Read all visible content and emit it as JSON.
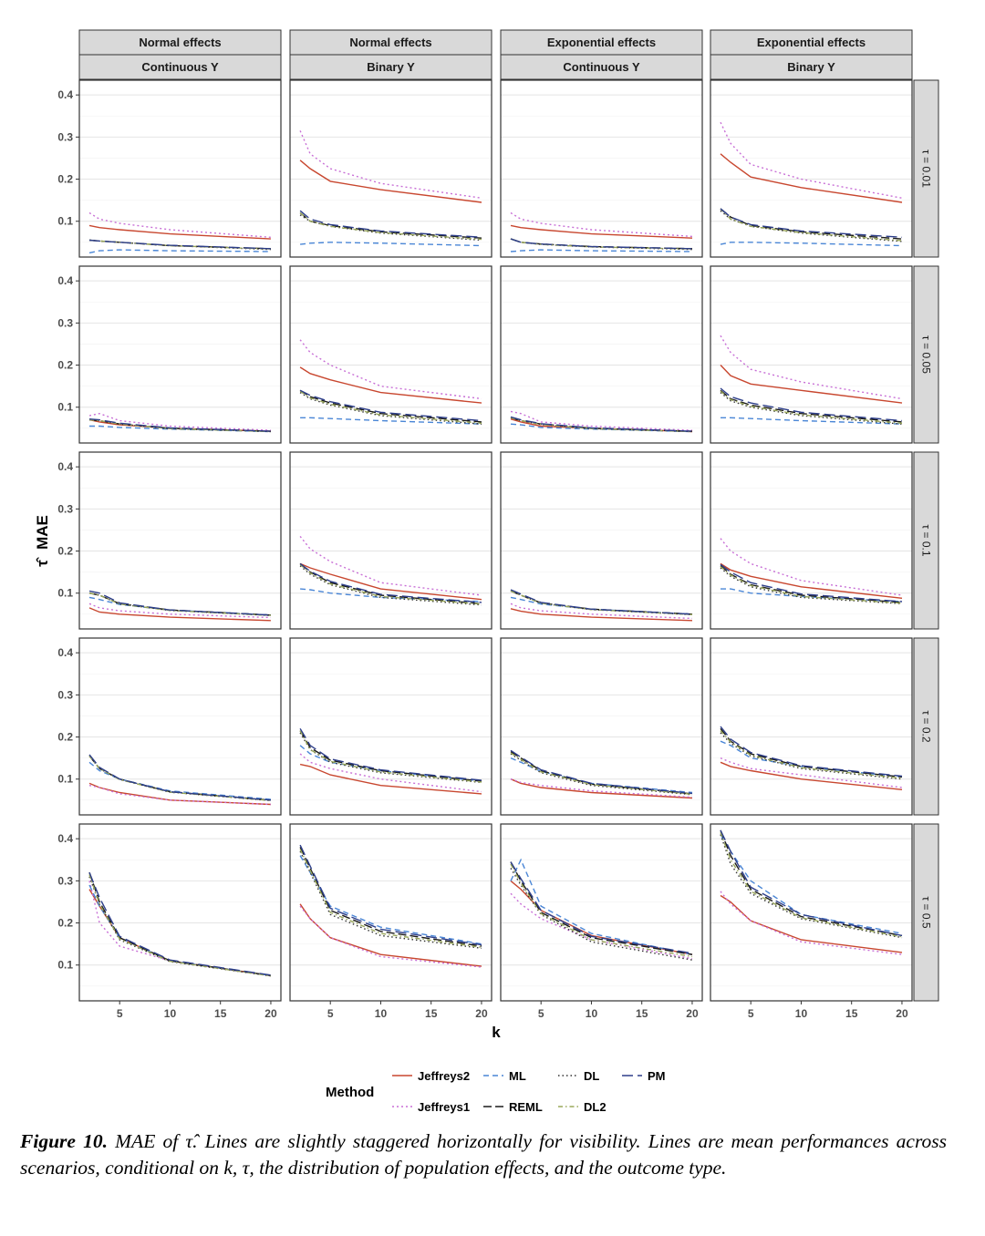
{
  "chart_data": {
    "type": "line",
    "facet_columns": [
      {
        "top": "Normal effects",
        "bottom": "Continuous Y"
      },
      {
        "top": "Normal effects",
        "bottom": "Binary Y"
      },
      {
        "top": "Exponential effects",
        "bottom": "Continuous Y"
      },
      {
        "top": "Exponential effects",
        "bottom": "Binary Y"
      }
    ],
    "facet_rows": [
      "τ = 0.01",
      "τ = 0.05",
      "τ = 0.1",
      "τ = 0.2",
      "τ = 0.5"
    ],
    "xlabel": "k",
    "ylabel": "MAE",
    "ylabel_symbol": "τ̂",
    "x_ticks": [
      5,
      10,
      15,
      20
    ],
    "y_ticks": [
      0.1,
      0.2,
      0.3,
      0.4
    ],
    "y_tick_labels": [
      "0.1",
      "0.2",
      "0.3",
      "0.4"
    ],
    "xlim": [
      1,
      21
    ],
    "ylim": [
      0.015,
      0.435
    ],
    "x": [
      2,
      3,
      5,
      10,
      20
    ],
    "legend_title": "Method",
    "legend_position": "bottom",
    "methods": [
      {
        "name": "Jeffreys2",
        "color": "#c8472f",
        "dash": ""
      },
      {
        "name": "Jeffreys1",
        "color": "#c86fd6",
        "dash": "2,3"
      },
      {
        "name": "ML",
        "color": "#4a86d6",
        "dash": "6,4"
      },
      {
        "name": "REML",
        "color": "#1a1a1a",
        "dash": "9,4"
      },
      {
        "name": "DL",
        "color": "#333333",
        "dash": "1.5,3"
      },
      {
        "name": "DL2",
        "color": "#9aa85a",
        "dash": "5,3,1.5,3"
      },
      {
        "name": "PM",
        "color": "#2e3f8a",
        "dash": "12,5"
      }
    ],
    "panels": [
      [
        {
          "Jeffreys2": [
            0.09,
            0.085,
            0.08,
            0.07,
            0.058
          ],
          "Jeffreys1": [
            0.12,
            0.105,
            0.095,
            0.08,
            0.062
          ],
          "ML": [
            0.025,
            0.03,
            0.032,
            0.03,
            0.028
          ],
          "REML": [
            0.055,
            0.053,
            0.05,
            0.042,
            0.035
          ],
          "DL": [
            0.055,
            0.053,
            0.05,
            0.042,
            0.033
          ],
          "DL2": [
            0.055,
            0.053,
            0.05,
            0.042,
            0.034
          ],
          "PM": [
            0.055,
            0.053,
            0.05,
            0.043,
            0.035
          ]
        },
        {
          "Jeffreys2": [
            0.245,
            0.225,
            0.195,
            0.175,
            0.145
          ],
          "Jeffreys1": [
            0.315,
            0.26,
            0.225,
            0.19,
            0.155
          ],
          "ML": [
            0.045,
            0.048,
            0.05,
            0.048,
            0.042
          ],
          "REML": [
            0.12,
            0.1,
            0.09,
            0.075,
            0.06
          ],
          "DL": [
            0.115,
            0.1,
            0.088,
            0.072,
            0.055
          ],
          "DL2": [
            0.12,
            0.1,
            0.088,
            0.073,
            0.057
          ],
          "PM": [
            0.125,
            0.105,
            0.092,
            0.077,
            0.062
          ]
        },
        {
          "Jeffreys2": [
            0.09,
            0.085,
            0.08,
            0.07,
            0.06
          ],
          "Jeffreys1": [
            0.12,
            0.105,
            0.095,
            0.08,
            0.064
          ],
          "ML": [
            0.028,
            0.03,
            0.032,
            0.03,
            0.028
          ],
          "REML": [
            0.058,
            0.05,
            0.046,
            0.04,
            0.035
          ],
          "DL": [
            0.058,
            0.05,
            0.045,
            0.039,
            0.033
          ],
          "DL2": [
            0.058,
            0.05,
            0.045,
            0.039,
            0.034
          ],
          "PM": [
            0.058,
            0.05,
            0.046,
            0.04,
            0.035
          ]
        },
        {
          "Jeffreys2": [
            0.26,
            0.24,
            0.205,
            0.18,
            0.145
          ],
          "Jeffreys1": [
            0.335,
            0.285,
            0.235,
            0.2,
            0.155
          ],
          "ML": [
            0.045,
            0.05,
            0.05,
            0.048,
            0.042
          ],
          "REML": [
            0.13,
            0.11,
            0.09,
            0.075,
            0.058
          ],
          "DL": [
            0.125,
            0.105,
            0.088,
            0.072,
            0.052
          ],
          "DL2": [
            0.13,
            0.105,
            0.088,
            0.073,
            0.054
          ],
          "PM": [
            0.13,
            0.11,
            0.092,
            0.077,
            0.062
          ]
        }
      ],
      [
        {
          "Jeffreys2": [
            0.07,
            0.065,
            0.058,
            0.05,
            0.043
          ],
          "Jeffreys1": [
            0.08,
            0.085,
            0.068,
            0.055,
            0.045
          ],
          "ML": [
            0.055,
            0.055,
            0.052,
            0.048,
            0.042
          ],
          "REML": [
            0.07,
            0.068,
            0.06,
            0.05,
            0.043
          ],
          "DL": [
            0.07,
            0.068,
            0.06,
            0.049,
            0.042
          ],
          "DL2": [
            0.07,
            0.068,
            0.06,
            0.049,
            0.042
          ],
          "PM": [
            0.072,
            0.07,
            0.062,
            0.051,
            0.043
          ]
        },
        {
          "Jeffreys2": [
            0.195,
            0.18,
            0.165,
            0.135,
            0.11
          ],
          "Jeffreys1": [
            0.26,
            0.23,
            0.2,
            0.15,
            0.12
          ],
          "ML": [
            0.075,
            0.075,
            0.073,
            0.068,
            0.06
          ],
          "REML": [
            0.14,
            0.125,
            0.11,
            0.085,
            0.065
          ],
          "DL": [
            0.135,
            0.12,
            0.105,
            0.08,
            0.06
          ],
          "DL2": [
            0.138,
            0.122,
            0.107,
            0.082,
            0.062
          ],
          "PM": [
            0.14,
            0.128,
            0.113,
            0.088,
            0.068
          ]
        },
        {
          "Jeffreys2": [
            0.072,
            0.065,
            0.055,
            0.05,
            0.042
          ],
          "Jeffreys1": [
            0.09,
            0.085,
            0.065,
            0.055,
            0.045
          ],
          "ML": [
            0.06,
            0.058,
            0.052,
            0.048,
            0.042
          ],
          "REML": [
            0.075,
            0.068,
            0.06,
            0.05,
            0.043
          ],
          "DL": [
            0.075,
            0.068,
            0.059,
            0.049,
            0.042
          ],
          "DL2": [
            0.075,
            0.068,
            0.059,
            0.049,
            0.042
          ],
          "PM": [
            0.077,
            0.07,
            0.061,
            0.051,
            0.043
          ]
        },
        {
          "Jeffreys2": [
            0.2,
            0.175,
            0.155,
            0.14,
            0.11
          ],
          "Jeffreys1": [
            0.27,
            0.23,
            0.19,
            0.16,
            0.12
          ],
          "ML": [
            0.075,
            0.075,
            0.073,
            0.068,
            0.06
          ],
          "REML": [
            0.14,
            0.12,
            0.105,
            0.085,
            0.065
          ],
          "DL": [
            0.135,
            0.115,
            0.1,
            0.08,
            0.06
          ],
          "DL2": [
            0.138,
            0.118,
            0.102,
            0.082,
            0.062
          ],
          "PM": [
            0.145,
            0.125,
            0.11,
            0.088,
            0.068
          ]
        }
      ],
      [
        {
          "Jeffreys2": [
            0.065,
            0.055,
            0.05,
            0.043,
            0.035
          ],
          "Jeffreys1": [
            0.075,
            0.065,
            0.058,
            0.05,
            0.042
          ],
          "ML": [
            0.09,
            0.085,
            0.073,
            0.06,
            0.048
          ],
          "REML": [
            0.1,
            0.095,
            0.075,
            0.06,
            0.048
          ],
          "DL": [
            0.1,
            0.095,
            0.074,
            0.059,
            0.047
          ],
          "DL2": [
            0.1,
            0.095,
            0.074,
            0.059,
            0.047
          ],
          "PM": [
            0.105,
            0.1,
            0.077,
            0.06,
            0.048
          ]
        },
        {
          "Jeffreys2": [
            0.17,
            0.16,
            0.145,
            0.11,
            0.085
          ],
          "Jeffreys1": [
            0.235,
            0.205,
            0.175,
            0.125,
            0.095
          ],
          "ML": [
            0.11,
            0.108,
            0.1,
            0.09,
            0.08
          ],
          "REML": [
            0.17,
            0.15,
            0.125,
            0.095,
            0.075
          ],
          "DL": [
            0.165,
            0.145,
            0.12,
            0.09,
            0.072
          ],
          "DL2": [
            0.168,
            0.148,
            0.122,
            0.092,
            0.074
          ],
          "PM": [
            0.17,
            0.152,
            0.128,
            0.097,
            0.078
          ]
        },
        {
          "Jeffreys2": [
            0.063,
            0.057,
            0.05,
            0.043,
            0.035
          ],
          "Jeffreys1": [
            0.075,
            0.065,
            0.058,
            0.05,
            0.04
          ],
          "ML": [
            0.09,
            0.085,
            0.074,
            0.062,
            0.05
          ],
          "REML": [
            0.105,
            0.095,
            0.077,
            0.062,
            0.05
          ],
          "DL": [
            0.105,
            0.095,
            0.076,
            0.061,
            0.049
          ],
          "DL2": [
            0.105,
            0.095,
            0.076,
            0.061,
            0.049
          ],
          "PM": [
            0.108,
            0.098,
            0.078,
            0.062,
            0.05
          ]
        },
        {
          "Jeffreys2": [
            0.17,
            0.155,
            0.14,
            0.115,
            0.088
          ],
          "Jeffreys1": [
            0.23,
            0.2,
            0.17,
            0.13,
            0.095
          ],
          "ML": [
            0.11,
            0.11,
            0.1,
            0.092,
            0.08
          ],
          "REML": [
            0.165,
            0.145,
            0.12,
            0.095,
            0.078
          ],
          "DL": [
            0.16,
            0.14,
            0.115,
            0.09,
            0.075
          ],
          "DL2": [
            0.163,
            0.143,
            0.118,
            0.092,
            0.076
          ],
          "PM": [
            0.168,
            0.15,
            0.125,
            0.098,
            0.08
          ]
        }
      ],
      [
        {
          "Jeffreys2": [
            0.09,
            0.08,
            0.068,
            0.05,
            0.04
          ],
          "Jeffreys1": [
            0.085,
            0.08,
            0.065,
            0.05,
            0.04
          ],
          "ML": [
            0.14,
            0.12,
            0.1,
            0.072,
            0.052
          ],
          "REML": [
            0.155,
            0.125,
            0.1,
            0.07,
            0.05
          ],
          "DL": [
            0.155,
            0.125,
            0.099,
            0.069,
            0.049
          ],
          "DL2": [
            0.155,
            0.125,
            0.099,
            0.069,
            0.049
          ],
          "PM": [
            0.158,
            0.128,
            0.1,
            0.07,
            0.05
          ]
        },
        {
          "Jeffreys2": [
            0.135,
            0.13,
            0.11,
            0.085,
            0.065
          ],
          "Jeffreys1": [
            0.16,
            0.14,
            0.125,
            0.1,
            0.07
          ],
          "ML": [
            0.18,
            0.16,
            0.14,
            0.12,
            0.095
          ],
          "REML": [
            0.215,
            0.175,
            0.145,
            0.12,
            0.095
          ],
          "DL": [
            0.21,
            0.17,
            0.14,
            0.115,
            0.092
          ],
          "DL2": [
            0.215,
            0.17,
            0.142,
            0.117,
            0.093
          ],
          "PM": [
            0.22,
            0.18,
            0.148,
            0.122,
            0.097
          ]
        },
        {
          "Jeffreys2": [
            0.1,
            0.09,
            0.08,
            0.068,
            0.055
          ],
          "Jeffreys1": [
            0.1,
            0.092,
            0.085,
            0.072,
            0.057
          ],
          "ML": [
            0.15,
            0.14,
            0.118,
            0.09,
            0.068
          ],
          "REML": [
            0.165,
            0.15,
            0.12,
            0.088,
            0.065
          ],
          "DL": [
            0.16,
            0.145,
            0.115,
            0.085,
            0.063
          ],
          "DL2": [
            0.162,
            0.147,
            0.117,
            0.087,
            0.064
          ],
          "PM": [
            0.168,
            0.152,
            0.122,
            0.09,
            0.066
          ]
        },
        {
          "Jeffreys2": [
            0.14,
            0.13,
            0.12,
            0.1,
            0.075
          ],
          "Jeffreys1": [
            0.15,
            0.14,
            0.125,
            0.11,
            0.08
          ],
          "ML": [
            0.19,
            0.18,
            0.15,
            0.13,
            0.105
          ],
          "REML": [
            0.22,
            0.19,
            0.16,
            0.13,
            0.105
          ],
          "DL": [
            0.21,
            0.185,
            0.155,
            0.125,
            0.1
          ],
          "DL2": [
            0.215,
            0.188,
            0.157,
            0.127,
            0.102
          ],
          "PM": [
            0.225,
            0.195,
            0.163,
            0.132,
            0.107
          ]
        }
      ],
      [
        {
          "Jeffreys2": [
            0.28,
            0.24,
            0.165,
            0.11,
            0.075
          ],
          "Jeffreys1": [
            0.3,
            0.2,
            0.145,
            0.11,
            0.075
          ],
          "ML": [
            0.29,
            0.24,
            0.165,
            0.11,
            0.075
          ],
          "REML": [
            0.32,
            0.25,
            0.165,
            0.11,
            0.075
          ],
          "DL": [
            0.31,
            0.245,
            0.16,
            0.108,
            0.074
          ],
          "DL2": [
            0.315,
            0.245,
            0.162,
            0.109,
            0.074
          ],
          "PM": [
            0.32,
            0.26,
            0.168,
            0.112,
            0.076
          ]
        },
        {
          "Jeffreys2": [
            0.245,
            0.21,
            0.165,
            0.125,
            0.097
          ],
          "Jeffreys1": [
            0.24,
            0.21,
            0.165,
            0.12,
            0.095
          ],
          "ML": [
            0.36,
            0.32,
            0.24,
            0.19,
            0.15
          ],
          "REML": [
            0.38,
            0.33,
            0.23,
            0.18,
            0.145
          ],
          "DL": [
            0.37,
            0.32,
            0.22,
            0.17,
            0.14
          ],
          "DL2": [
            0.375,
            0.325,
            0.225,
            0.175,
            0.142
          ],
          "PM": [
            0.385,
            0.335,
            0.235,
            0.185,
            0.148
          ]
        },
        {
          "Jeffreys2": [
            0.3,
            0.28,
            0.23,
            0.17,
            0.125
          ],
          "Jeffreys1": [
            0.27,
            0.245,
            0.21,
            0.16,
            0.115
          ],
          "ML": [
            0.3,
            0.35,
            0.24,
            0.175,
            0.125
          ],
          "REML": [
            0.345,
            0.3,
            0.225,
            0.165,
            0.125
          ],
          "DL": [
            0.33,
            0.29,
            0.22,
            0.155,
            0.112
          ],
          "DL2": [
            0.34,
            0.295,
            0.222,
            0.16,
            0.12
          ],
          "PM": [
            0.345,
            0.305,
            0.23,
            0.168,
            0.128
          ]
        },
        {
          "Jeffreys2": [
            0.265,
            0.25,
            0.205,
            0.16,
            0.13
          ],
          "Jeffreys1": [
            0.275,
            0.245,
            0.205,
            0.155,
            0.125
          ],
          "ML": [
            0.41,
            0.37,
            0.3,
            0.22,
            0.175
          ],
          "REML": [
            0.42,
            0.36,
            0.28,
            0.215,
            0.17
          ],
          "DL": [
            0.41,
            0.34,
            0.27,
            0.21,
            0.165
          ],
          "DL2": [
            0.415,
            0.35,
            0.275,
            0.212,
            0.167
          ],
          "PM": [
            0.42,
            0.37,
            0.285,
            0.22,
            0.17
          ]
        }
      ]
    ]
  },
  "caption": {
    "label": "Figure 10.",
    "text": " MAE of τ̂. Lines are slightly staggered horizontally for visibility. Lines are mean performances across scenarios, conditional on k, τ, the distribution of population effects, and the outcome type."
  }
}
